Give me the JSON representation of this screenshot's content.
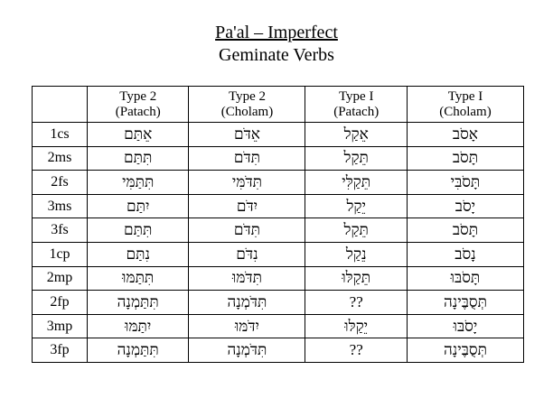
{
  "header": {
    "title": "Pa'al – Imperfect",
    "subtitle": "Geminate Verbs"
  },
  "table": {
    "columns": [
      {
        "type": "Type 2",
        "variant": "(Patach)"
      },
      {
        "type": "Type 2",
        "variant": "(Cholam)"
      },
      {
        "type": "Type I",
        "variant": "(Patach)"
      },
      {
        "type": "Type I",
        "variant": "(Cholam)"
      }
    ],
    "rows": [
      [
        "1cs",
        "אֵתַּם",
        "אֵדֹּם",
        "אֵקַל",
        "אָסֹב"
      ],
      [
        "2ms",
        "תִּתַּם",
        "תִּדֹּם",
        "תֵּקַל",
        "תָּסֹב"
      ],
      [
        "2fs",
        "תִּתַּמִּי",
        "תִּדֹּמִּי",
        "תֵּקַלִּי",
        "תָּסֹבִּי"
      ],
      [
        "3ms",
        "יִתַּם",
        "יִדֹּם",
        "יֵקַל",
        "יָסֹב"
      ],
      [
        "3fs",
        "תִּתַּם",
        "תִּדֹּם",
        "תֵּקַל",
        "תָּסֹב"
      ],
      [
        "1cp",
        "נִתַּם",
        "נִדֹּם",
        "נֵקַל",
        "נָסֹב"
      ],
      [
        "2mp",
        "תִּתַּמּוּ",
        "תִּדֹּמּוּ",
        "תֵּקַלּוּ",
        "תָּסֹבּוּ"
      ],
      [
        "2fp",
        "תִּתַּמְנָה",
        "תִּדֹּמְנָה",
        "??",
        "תְּסֻבֶּינָה"
      ],
      [
        "3mp",
        "יִתַּמּוּ",
        "יִדֹּמּוּ",
        "יֵקַלּוּ",
        "יָסֹבּוּ"
      ],
      [
        "3fp",
        "תִּתַּמְנָה",
        "תִּדֹּמְנָה",
        "??",
        "תְּסֻבֶּינָה"
      ]
    ]
  }
}
